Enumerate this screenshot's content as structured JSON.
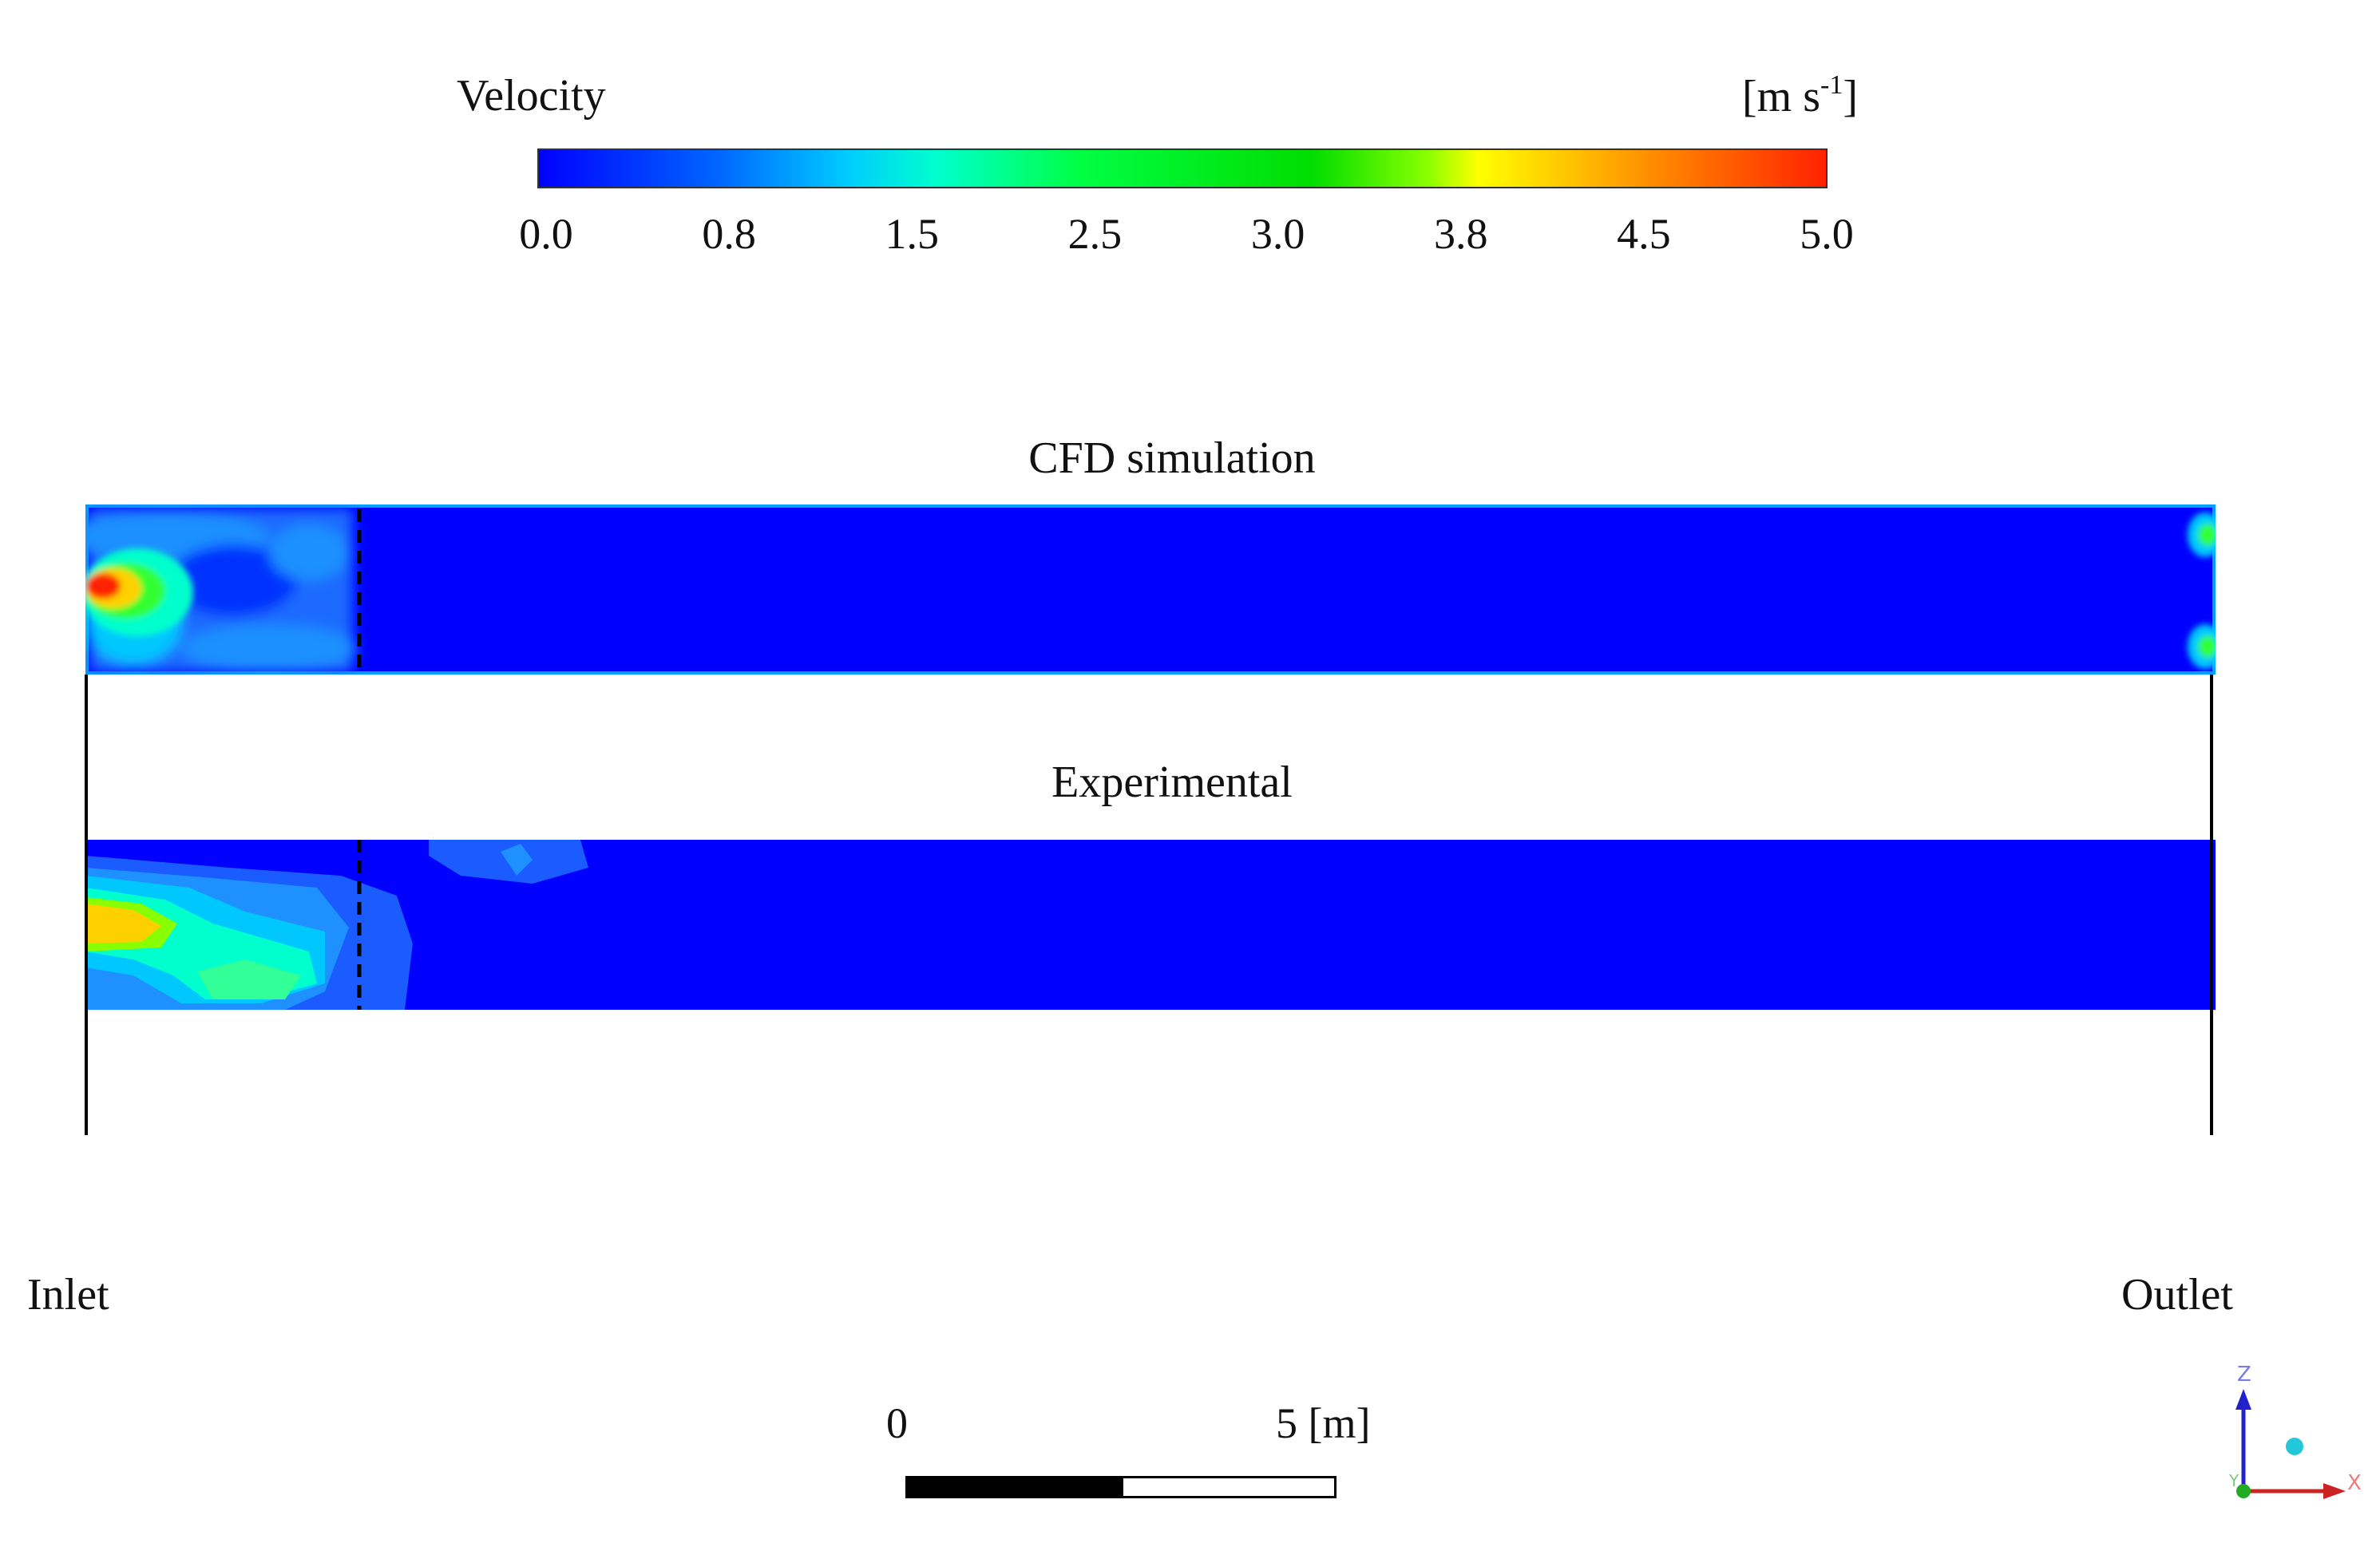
{
  "legend": {
    "title": "Velocity",
    "unit_base": "[m s",
    "unit_exp": "-1",
    "unit_close": "]",
    "ticks": [
      "0.0",
      "0.8",
      "1.5",
      "2.5",
      "3.0",
      "3.8",
      "4.5",
      "5.0"
    ],
    "range": [
      0.0,
      5.0
    ]
  },
  "panels": {
    "cfd_title": "CFD simulation",
    "exp_title": "Experimental"
  },
  "labels": {
    "inlet": "Inlet",
    "outlet": "Outlet"
  },
  "scale": {
    "start": "0",
    "end": "5 [m]"
  },
  "axes": {
    "z": "Z",
    "x": "X",
    "y": "Y"
  },
  "colors": {
    "field_base": "#0000ff",
    "jet_core": "#ff2200",
    "jet_mid": "#ffd000",
    "jet_outer": "#00ffcc",
    "axis_z": "#2222cc",
    "axis_x": "#cc2222",
    "axis_y": "#22aa22"
  }
}
